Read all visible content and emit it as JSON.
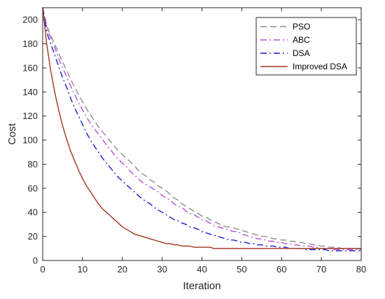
{
  "chart_data": {
    "type": "line",
    "title": "",
    "xlabel": "Iteration",
    "ylabel": "Cost",
    "xlim": [
      0,
      80
    ],
    "ylim": [
      0,
      210
    ],
    "xticks": [
      0,
      10,
      20,
      30,
      40,
      50,
      60,
      70,
      80
    ],
    "yticks": [
      0,
      20,
      40,
      60,
      80,
      100,
      120,
      140,
      160,
      180,
      200
    ],
    "grid": false,
    "legend_position": "top-right",
    "series": [
      {
        "name": "PSO",
        "color": "#8c8c8c",
        "dash": "dashed",
        "points": [
          [
            0,
            210
          ],
          [
            1,
            195
          ],
          [
            2,
            187
          ],
          [
            3,
            180
          ],
          [
            4,
            172
          ],
          [
            5,
            165
          ],
          [
            6,
            158
          ],
          [
            7,
            151
          ],
          [
            8,
            144
          ],
          [
            9,
            138
          ],
          [
            10,
            132
          ],
          [
            11,
            126
          ],
          [
            12,
            121
          ],
          [
            13,
            116
          ],
          [
            14,
            111
          ],
          [
            15,
            107
          ],
          [
            16,
            103
          ],
          [
            17,
            99
          ],
          [
            18,
            95
          ],
          [
            19,
            91
          ],
          [
            20,
            88
          ],
          [
            21,
            85
          ],
          [
            22,
            82
          ],
          [
            23,
            79
          ],
          [
            24,
            75
          ],
          [
            25,
            72
          ],
          [
            26,
            70
          ],
          [
            27,
            67
          ],
          [
            28,
            65
          ],
          [
            29,
            62
          ],
          [
            30,
            60
          ],
          [
            31,
            58
          ],
          [
            32,
            55
          ],
          [
            33,
            52
          ],
          [
            34,
            50
          ],
          [
            35,
            47
          ],
          [
            36,
            45
          ],
          [
            37,
            43
          ],
          [
            38,
            41
          ],
          [
            39,
            39
          ],
          [
            40,
            37
          ],
          [
            41,
            36
          ],
          [
            42,
            34
          ],
          [
            43,
            32
          ],
          [
            44,
            31
          ],
          [
            45,
            29
          ],
          [
            46,
            28
          ],
          [
            47,
            28
          ],
          [
            48,
            27
          ],
          [
            49,
            26
          ],
          [
            50,
            25
          ],
          [
            51,
            24
          ],
          [
            52,
            23
          ],
          [
            53,
            22
          ],
          [
            54,
            21
          ],
          [
            55,
            20
          ],
          [
            56,
            20
          ],
          [
            57,
            19
          ],
          [
            58,
            18
          ],
          [
            59,
            18
          ],
          [
            60,
            17
          ],
          [
            61,
            17
          ],
          [
            62,
            16
          ],
          [
            63,
            16
          ],
          [
            64,
            15
          ],
          [
            65,
            15
          ],
          [
            66,
            14
          ],
          [
            67,
            14
          ],
          [
            68,
            13
          ],
          [
            69,
            13
          ],
          [
            70,
            12
          ],
          [
            71,
            12
          ],
          [
            72,
            11
          ],
          [
            73,
            11
          ],
          [
            74,
            11
          ],
          [
            75,
            10
          ],
          [
            76,
            10
          ],
          [
            77,
            10
          ],
          [
            78,
            10
          ],
          [
            79,
            10
          ],
          [
            80,
            9
          ]
        ]
      },
      {
        "name": "ABC",
        "color": "#b44fd8",
        "dash": "dashdot",
        "points": [
          [
            0,
            210
          ],
          [
            1,
            193
          ],
          [
            2,
            185
          ],
          [
            3,
            177
          ],
          [
            4,
            168
          ],
          [
            5,
            160
          ],
          [
            6,
            153
          ],
          [
            7,
            145
          ],
          [
            8,
            138
          ],
          [
            9,
            131
          ],
          [
            10,
            125
          ],
          [
            11,
            119
          ],
          [
            12,
            114
          ],
          [
            13,
            109
          ],
          [
            14,
            105
          ],
          [
            15,
            101
          ],
          [
            16,
            96
          ],
          [
            17,
            92
          ],
          [
            18,
            88
          ],
          [
            19,
            84
          ],
          [
            20,
            81
          ],
          [
            21,
            78
          ],
          [
            22,
            74
          ],
          [
            23,
            71
          ],
          [
            24,
            68
          ],
          [
            25,
            65
          ],
          [
            26,
            63
          ],
          [
            27,
            61
          ],
          [
            28,
            59
          ],
          [
            29,
            57
          ],
          [
            30,
            54
          ],
          [
            31,
            52
          ],
          [
            32,
            50
          ],
          [
            33,
            47
          ],
          [
            34,
            45
          ],
          [
            35,
            44
          ],
          [
            36,
            41
          ],
          [
            37,
            39
          ],
          [
            38,
            38
          ],
          [
            39,
            36
          ],
          [
            40,
            34
          ],
          [
            41,
            33
          ],
          [
            42,
            31
          ],
          [
            43,
            29
          ],
          [
            44,
            28
          ],
          [
            45,
            27
          ],
          [
            46,
            26
          ],
          [
            47,
            25
          ],
          [
            48,
            24
          ],
          [
            49,
            24
          ],
          [
            50,
            22
          ],
          [
            51,
            21
          ],
          [
            52,
            20
          ],
          [
            53,
            19
          ],
          [
            54,
            18
          ],
          [
            55,
            18
          ],
          [
            56,
            17
          ],
          [
            57,
            16
          ],
          [
            58,
            16
          ],
          [
            59,
            15
          ],
          [
            60,
            15
          ],
          [
            61,
            14
          ],
          [
            62,
            14
          ],
          [
            63,
            13
          ],
          [
            64,
            13
          ],
          [
            65,
            12
          ],
          [
            66,
            12
          ],
          [
            67,
            12
          ],
          [
            68,
            11
          ],
          [
            69,
            11
          ],
          [
            70,
            10
          ],
          [
            71,
            10
          ],
          [
            72,
            10
          ],
          [
            73,
            9
          ],
          [
            74,
            9
          ],
          [
            75,
            9
          ],
          [
            76,
            9
          ],
          [
            77,
            9
          ],
          [
            78,
            9
          ],
          [
            79,
            9
          ],
          [
            80,
            8
          ]
        ]
      },
      {
        "name": "DSA",
        "color": "#1c1ccf",
        "dash": "dashdot",
        "points": [
          [
            0,
            210
          ],
          [
            1,
            190
          ],
          [
            2,
            180
          ],
          [
            3,
            171
          ],
          [
            4,
            161
          ],
          [
            5,
            152
          ],
          [
            6,
            144
          ],
          [
            7,
            135
          ],
          [
            8,
            127
          ],
          [
            9,
            120
          ],
          [
            10,
            113
          ],
          [
            11,
            106
          ],
          [
            12,
            100
          ],
          [
            13,
            95
          ],
          [
            14,
            90
          ],
          [
            15,
            85
          ],
          [
            16,
            81
          ],
          [
            17,
            77
          ],
          [
            18,
            73
          ],
          [
            19,
            69
          ],
          [
            20,
            66
          ],
          [
            21,
            63
          ],
          [
            22,
            60
          ],
          [
            23,
            57
          ],
          [
            24,
            54
          ],
          [
            25,
            51
          ],
          [
            26,
            49
          ],
          [
            27,
            47
          ],
          [
            28,
            44
          ],
          [
            29,
            42
          ],
          [
            30,
            40
          ],
          [
            31,
            38
          ],
          [
            32,
            36
          ],
          [
            33,
            34
          ],
          [
            34,
            33
          ],
          [
            35,
            31
          ],
          [
            36,
            30
          ],
          [
            37,
            28
          ],
          [
            38,
            27
          ],
          [
            39,
            26
          ],
          [
            40,
            24
          ],
          [
            41,
            23
          ],
          [
            42,
            22
          ],
          [
            43,
            21
          ],
          [
            44,
            20
          ],
          [
            45,
            19
          ],
          [
            46,
            18
          ],
          [
            47,
            17
          ],
          [
            48,
            17
          ],
          [
            49,
            16
          ],
          [
            50,
            15
          ],
          [
            51,
            15
          ],
          [
            52,
            14
          ],
          [
            53,
            14
          ],
          [
            54,
            13
          ],
          [
            55,
            13
          ],
          [
            56,
            12
          ],
          [
            57,
            12
          ],
          [
            58,
            12
          ],
          [
            59,
            11
          ],
          [
            60,
            11
          ],
          [
            61,
            11
          ],
          [
            62,
            10
          ],
          [
            63,
            10
          ],
          [
            64,
            10
          ],
          [
            65,
            10
          ],
          [
            66,
            9
          ],
          [
            67,
            9
          ],
          [
            68,
            9
          ],
          [
            69,
            9
          ],
          [
            70,
            9
          ],
          [
            71,
            9
          ],
          [
            72,
            8
          ],
          [
            73,
            8
          ],
          [
            74,
            8
          ],
          [
            75,
            8
          ],
          [
            76,
            8
          ],
          [
            77,
            8
          ],
          [
            78,
            8
          ],
          [
            79,
            8
          ],
          [
            80,
            8
          ]
        ]
      },
      {
        "name": "Improved DSA",
        "color": "#a0341a",
        "dash": "solid",
        "points": [
          [
            0,
            210
          ],
          [
            1,
            180
          ],
          [
            2,
            158
          ],
          [
            3,
            140
          ],
          [
            4,
            125
          ],
          [
            5,
            112
          ],
          [
            6,
            101
          ],
          [
            7,
            91
          ],
          [
            8,
            83
          ],
          [
            9,
            75
          ],
          [
            10,
            68
          ],
          [
            11,
            62
          ],
          [
            12,
            57
          ],
          [
            13,
            52
          ],
          [
            14,
            47
          ],
          [
            15,
            43
          ],
          [
            16,
            40
          ],
          [
            17,
            37
          ],
          [
            18,
            34
          ],
          [
            19,
            31
          ],
          [
            20,
            28
          ],
          [
            21,
            26
          ],
          [
            22,
            24
          ],
          [
            23,
            22
          ],
          [
            24,
            21
          ],
          [
            25,
            20
          ],
          [
            26,
            19
          ],
          [
            27,
            18
          ],
          [
            28,
            17
          ],
          [
            29,
            16
          ],
          [
            30,
            15
          ],
          [
            31,
            14
          ],
          [
            32,
            14
          ],
          [
            33,
            13
          ],
          [
            34,
            13
          ],
          [
            35,
            12
          ],
          [
            36,
            12
          ],
          [
            37,
            12
          ],
          [
            38,
            11
          ],
          [
            39,
            11
          ],
          [
            40,
            11
          ],
          [
            41,
            11
          ],
          [
            42,
            11
          ],
          [
            43,
            10
          ],
          [
            44,
            10
          ],
          [
            45,
            10
          ],
          [
            46,
            10
          ],
          [
            47,
            10
          ],
          [
            48,
            10
          ],
          [
            49,
            10
          ],
          [
            50,
            10
          ],
          [
            51,
            10
          ],
          [
            52,
            10
          ],
          [
            53,
            10
          ],
          [
            54,
            10
          ],
          [
            55,
            10
          ],
          [
            56,
            10
          ],
          [
            57,
            10
          ],
          [
            58,
            10
          ],
          [
            59,
            10
          ],
          [
            60,
            10
          ],
          [
            61,
            10
          ],
          [
            62,
            10
          ],
          [
            63,
            10
          ],
          [
            64,
            10
          ],
          [
            65,
            10
          ],
          [
            66,
            10
          ],
          [
            67,
            10
          ],
          [
            68,
            10
          ],
          [
            69,
            10
          ],
          [
            70,
            10
          ],
          [
            71,
            10
          ],
          [
            72,
            10
          ],
          [
            73,
            10
          ],
          [
            74,
            10
          ],
          [
            75,
            10
          ],
          [
            76,
            10
          ],
          [
            77,
            10
          ],
          [
            78,
            10
          ],
          [
            79,
            10
          ],
          [
            80,
            10
          ]
        ]
      }
    ]
  }
}
